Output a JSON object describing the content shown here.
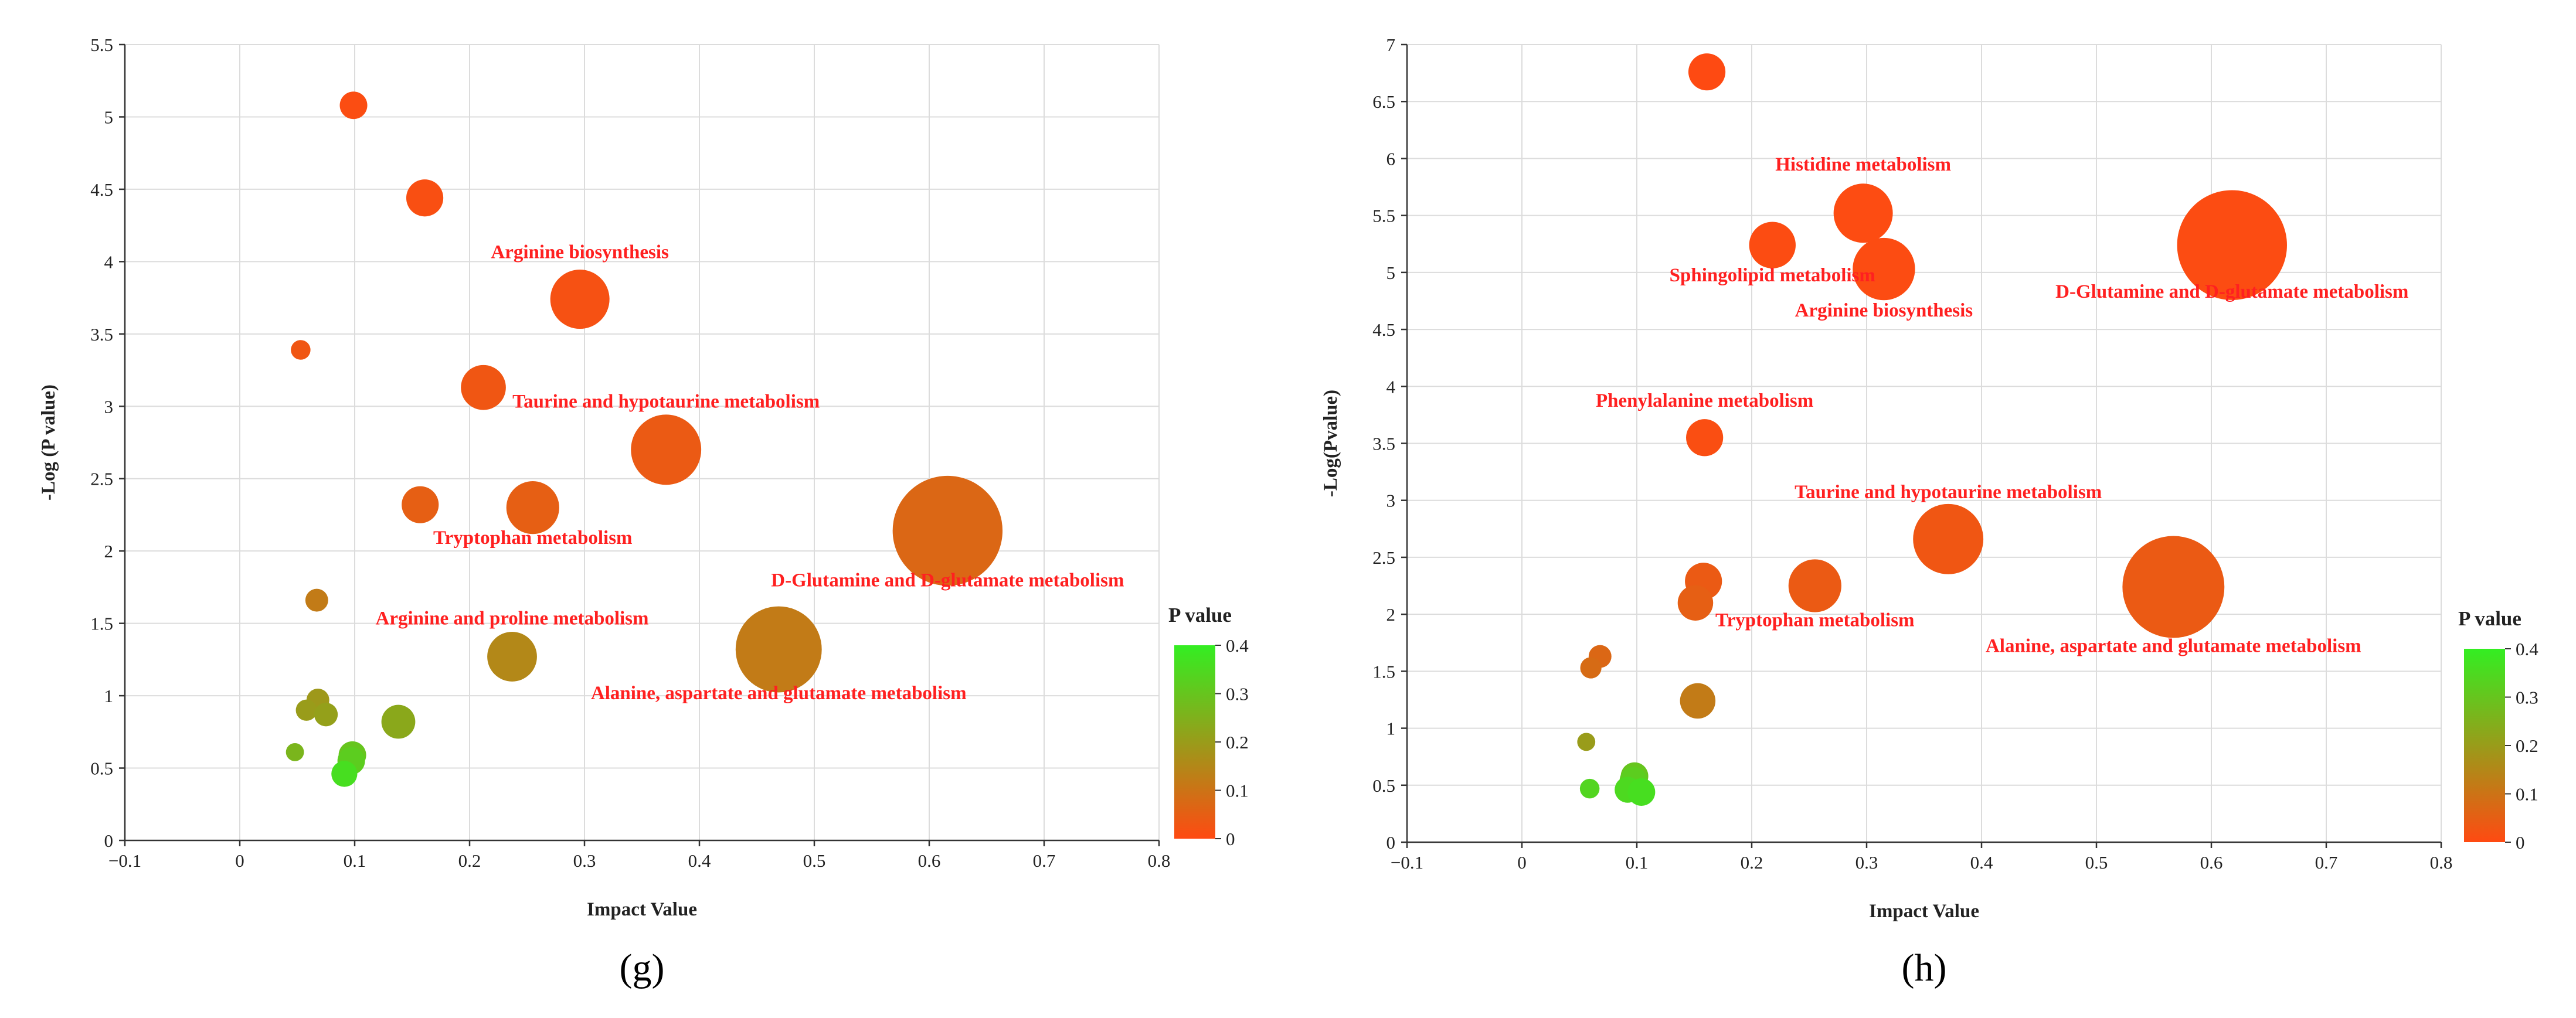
{
  "colorscale": {
    "low": "#ff4a12",
    "high": "#33ee22"
  },
  "chart_data": [
    {
      "type": "scatter",
      "panel_label": "(g)",
      "xlabel": "Impact Value",
      "ylabel": "-Log (P value)",
      "xlim": [
        -0.1,
        0.8
      ],
      "ylim": [
        0,
        5.5
      ],
      "xticks": [
        -0.1,
        0,
        0.1,
        0.2,
        0.3,
        0.4,
        0.5,
        0.6,
        0.7,
        0.8
      ],
      "xtick_labels": [
        "−0.1",
        "0",
        "0.1",
        "0.2",
        "0.3",
        "0.4",
        "0.5",
        "0.6",
        "0.7",
        "0.8"
      ],
      "yticks": [
        0,
        0.5,
        1,
        1.5,
        2,
        2.5,
        3,
        3.5,
        4,
        4.5,
        5,
        5.5
      ],
      "ytick_labels": [
        "0",
        "0.5",
        "1",
        "1.5",
        "2",
        "2.5",
        "3",
        "3.5",
        "4",
        "4.5",
        "5",
        "5.5"
      ],
      "grid": true,
      "legend": {
        "title": "P value",
        "range": [
          0,
          0.4
        ],
        "ticks": [
          "0",
          "0.1",
          "0.2",
          "0.3",
          "0.4"
        ],
        "placement": "right"
      },
      "points": [
        {
          "x": 0.099,
          "y": 5.08,
          "p": 0.008,
          "size": 0.1,
          "label": ""
        },
        {
          "x": 0.161,
          "y": 4.44,
          "p": 0.012,
          "size": 0.16,
          "label": ""
        },
        {
          "x": 0.296,
          "y": 3.74,
          "p": 0.018,
          "size": 0.3,
          "label": "Arginine biosynthesis"
        },
        {
          "x": 0.053,
          "y": 3.39,
          "p": 0.03,
          "size": 0.05,
          "label": ""
        },
        {
          "x": 0.212,
          "y": 3.13,
          "p": 0.03,
          "size": 0.21,
          "label": ""
        },
        {
          "x": 0.371,
          "y": 2.7,
          "p": 0.04,
          "size": 0.37,
          "label": "Taurine and hypotaurine metabolism"
        },
        {
          "x": 0.157,
          "y": 2.32,
          "p": 0.05,
          "size": 0.16,
          "label": ""
        },
        {
          "x": 0.255,
          "y": 2.3,
          "p": 0.05,
          "size": 0.26,
          "label": "Tryptophan metabolism"
        },
        {
          "x": 0.616,
          "y": 2.14,
          "p": 0.07,
          "size": 0.62,
          "label": "D-Glutamine and D-glutamate metabolism"
        },
        {
          "x": 0.067,
          "y": 1.66,
          "p": 0.12,
          "size": 0.07,
          "label": ""
        },
        {
          "x": 0.237,
          "y": 1.27,
          "p": 0.15,
          "size": 0.24,
          "label": "Arginine and proline metabolism"
        },
        {
          "x": 0.469,
          "y": 1.32,
          "p": 0.12,
          "size": 0.47,
          "label": "Alanine, aspartate and glutamate metabolism"
        },
        {
          "x": 0.068,
          "y": 0.97,
          "p": 0.19,
          "size": 0.07,
          "label": ""
        },
        {
          "x": 0.058,
          "y": 0.9,
          "p": 0.2,
          "size": 0.06,
          "label": ""
        },
        {
          "x": 0.075,
          "y": 0.87,
          "p": 0.21,
          "size": 0.075,
          "label": ""
        },
        {
          "x": 0.138,
          "y": 0.82,
          "p": 0.23,
          "size": 0.14,
          "label": ""
        },
        {
          "x": 0.048,
          "y": 0.61,
          "p": 0.26,
          "size": 0.04,
          "label": ""
        },
        {
          "x": 0.098,
          "y": 0.59,
          "p": 0.3,
          "size": 0.1,
          "label": ""
        },
        {
          "x": 0.097,
          "y": 0.55,
          "p": 0.32,
          "size": 0.1,
          "label": ""
        },
        {
          "x": 0.091,
          "y": 0.46,
          "p": 0.36,
          "size": 0.09,
          "label": ""
        }
      ]
    },
    {
      "type": "scatter",
      "panel_label": "(h)",
      "xlabel": "Impact Value",
      "ylabel": "-Log(Pvalue)",
      "xlim": [
        -0.1,
        0.8
      ],
      "ylim": [
        0,
        7
      ],
      "xticks": [
        -0.1,
        0,
        0.1,
        0.2,
        0.3,
        0.4,
        0.5,
        0.6,
        0.7,
        0.8
      ],
      "xtick_labels": [
        "−0.1",
        "0",
        "0.1",
        "0.2",
        "0.3",
        "0.4",
        "0.5",
        "0.6",
        "0.7",
        "0.8"
      ],
      "yticks": [
        0,
        0.5,
        1,
        1.5,
        2,
        2.5,
        3,
        3.5,
        4,
        4.5,
        5,
        5.5,
        6,
        6.5,
        7
      ],
      "ytick_labels": [
        "0",
        "0.5",
        "1",
        "1.5",
        "2",
        "2.5",
        "3",
        "3.5",
        "4",
        "4.5",
        "5",
        "5.5",
        "6",
        "6.5",
        "7"
      ],
      "grid": true,
      "legend": {
        "title": "P value",
        "range": [
          0,
          0.4
        ],
        "ticks": [
          "0",
          "0.1",
          "0.2",
          "0.3",
          "0.4"
        ],
        "placement": "right"
      },
      "points": [
        {
          "x": 0.161,
          "y": 6.76,
          "p": 0.001,
          "size": 0.16,
          "label": ""
        },
        {
          "x": 0.297,
          "y": 5.52,
          "p": 0.004,
          "size": 0.3,
          "label": "Histidine metabolism"
        },
        {
          "x": 0.218,
          "y": 5.24,
          "p": 0.005,
          "size": 0.22,
          "label": "Sphingolipid metabolism"
        },
        {
          "x": 0.315,
          "y": 5.03,
          "p": 0.006,
          "size": 0.32,
          "label": "Arginine biosynthesis"
        },
        {
          "x": 0.618,
          "y": 5.24,
          "p": 0.005,
          "size": 0.62,
          "label": "D-Glutamine and D-glutamate metabolism"
        },
        {
          "x": 0.159,
          "y": 3.55,
          "p": 0.01,
          "size": 0.16,
          "label": "Phenylalanine metabolism"
        },
        {
          "x": 0.371,
          "y": 2.66,
          "p": 0.03,
          "size": 0.37,
          "label": "Taurine and hypotaurine metabolism"
        },
        {
          "x": 0.158,
          "y": 2.29,
          "p": 0.04,
          "size": 0.16,
          "label": ""
        },
        {
          "x": 0.255,
          "y": 2.25,
          "p": 0.04,
          "size": 0.26,
          "label": "Tryptophan metabolism"
        },
        {
          "x": 0.151,
          "y": 2.1,
          "p": 0.05,
          "size": 0.15,
          "label": ""
        },
        {
          "x": 0.567,
          "y": 2.24,
          "p": 0.04,
          "size": 0.57,
          "label": "Alanine, aspartate and glutamate metabolism"
        },
        {
          "x": 0.068,
          "y": 1.63,
          "p": 0.07,
          "size": 0.07,
          "label": ""
        },
        {
          "x": 0.06,
          "y": 1.53,
          "p": 0.08,
          "size": 0.06,
          "label": ""
        },
        {
          "x": 0.153,
          "y": 1.24,
          "p": 0.12,
          "size": 0.15,
          "label": ""
        },
        {
          "x": 0.056,
          "y": 0.88,
          "p": 0.2,
          "size": 0.04,
          "label": ""
        },
        {
          "x": 0.098,
          "y": 0.58,
          "p": 0.3,
          "size": 0.1,
          "label": ""
        },
        {
          "x": 0.097,
          "y": 0.54,
          "p": 0.32,
          "size": 0.1,
          "label": ""
        },
        {
          "x": 0.059,
          "y": 0.47,
          "p": 0.34,
          "size": 0.05,
          "label": ""
        },
        {
          "x": 0.092,
          "y": 0.46,
          "p": 0.35,
          "size": 0.09,
          "label": ""
        },
        {
          "x": 0.104,
          "y": 0.44,
          "p": 0.36,
          "size": 0.1,
          "label": ""
        }
      ]
    }
  ]
}
